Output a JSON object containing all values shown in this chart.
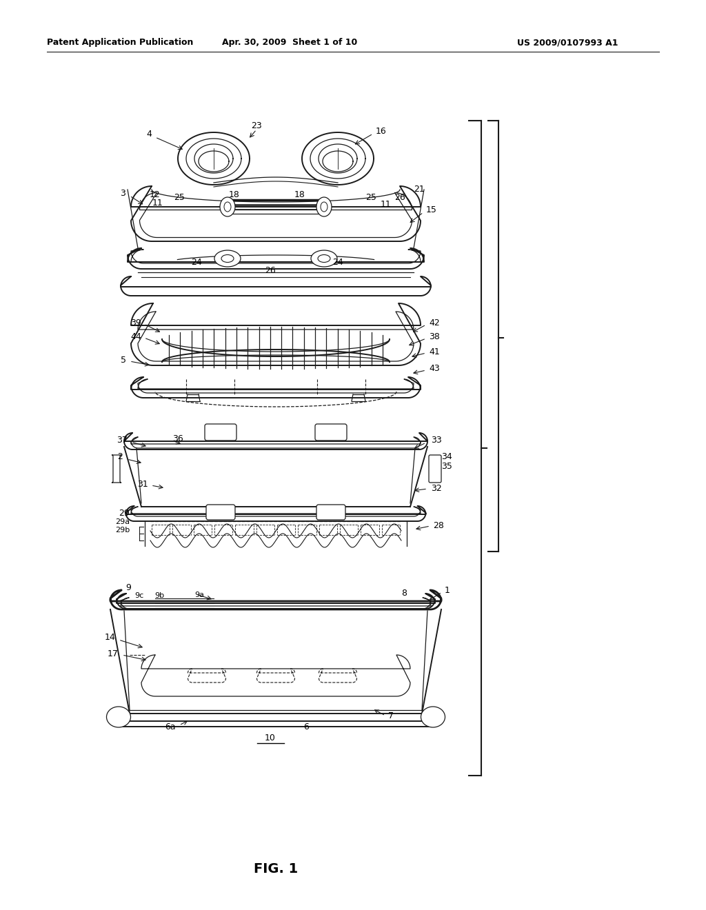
{
  "background_color": "#ffffff",
  "header_left": "Patent Application Publication",
  "header_mid": "Apr. 30, 2009  Sheet 1 of 10",
  "header_right": "US 2009/0107993 A1",
  "figure_label": "FIG. 1",
  "lc": "#1a1a1a",
  "tc": "#000000",
  "fig_label_fontsize": 14,
  "header_fontsize": 9,
  "label_fontsize": 9
}
